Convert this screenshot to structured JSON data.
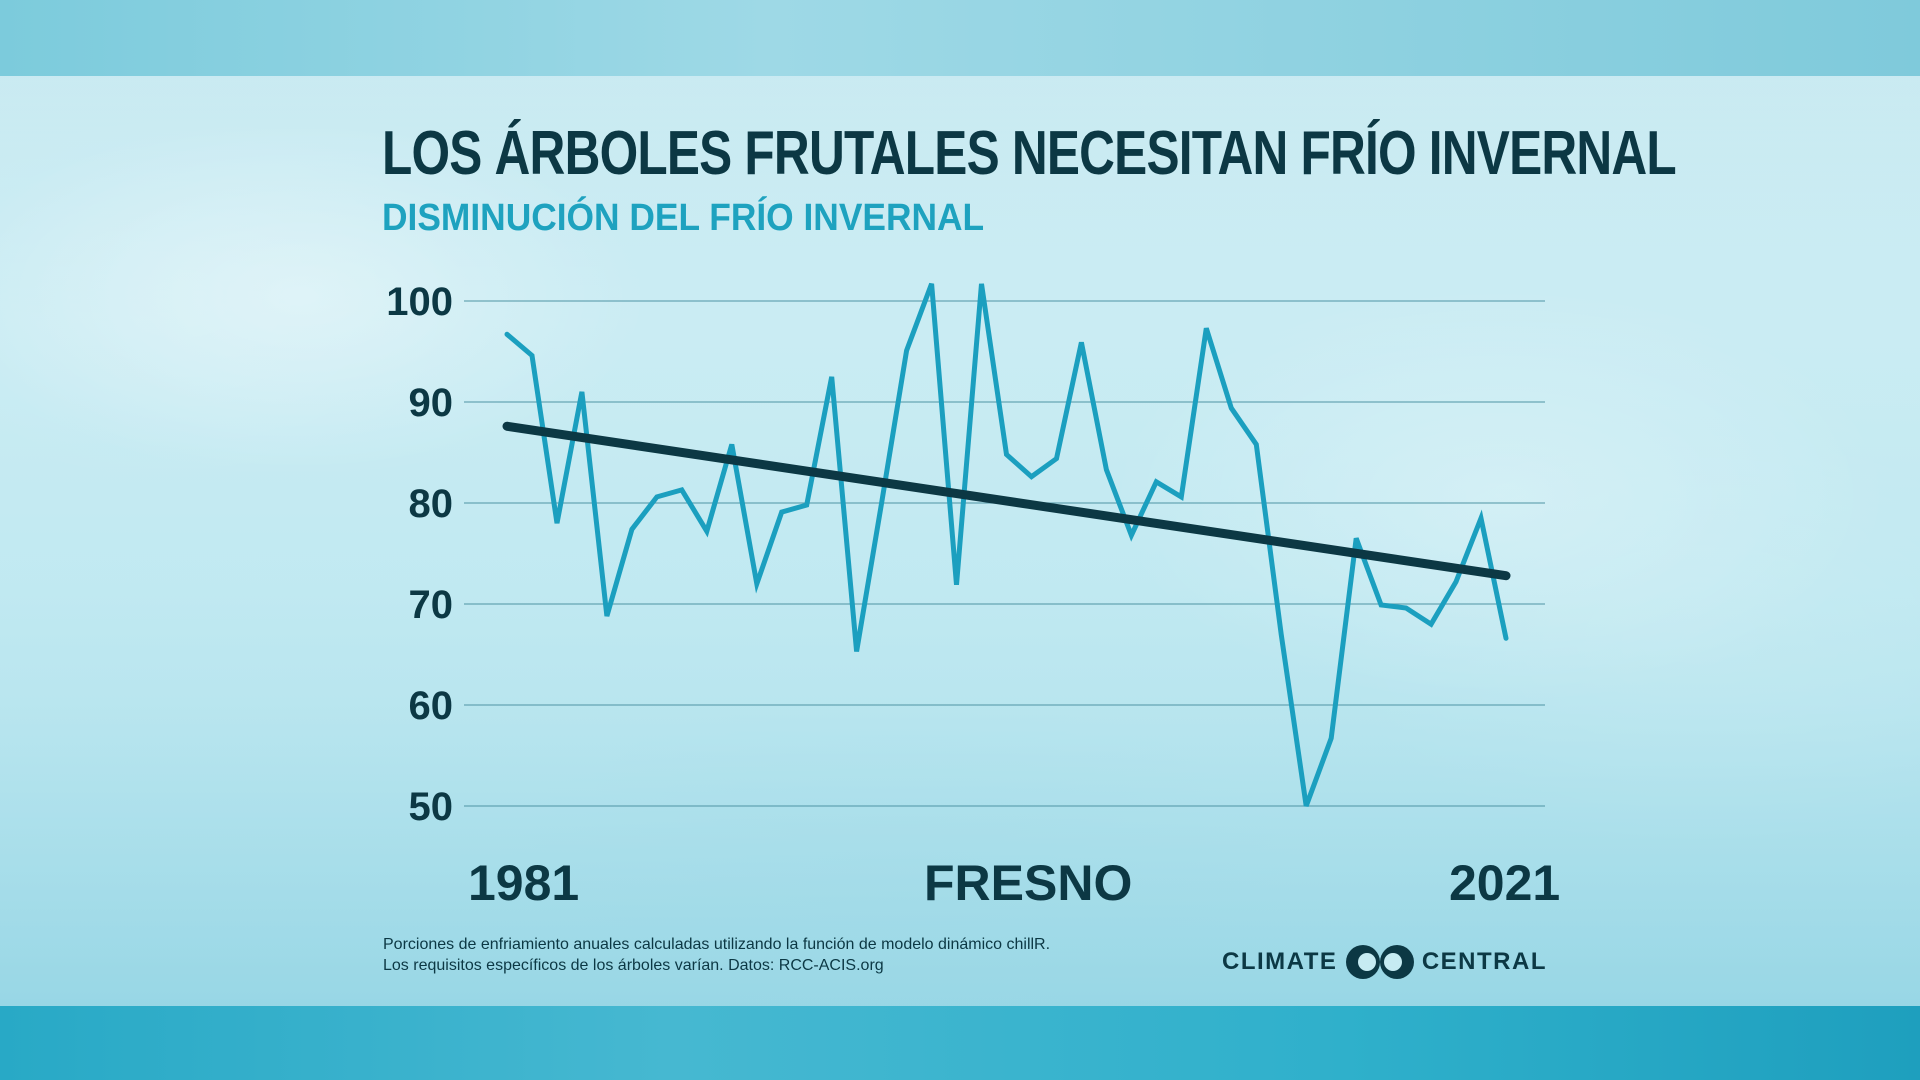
{
  "title": "LOS ÁRBOLES FRUTALES NECESITAN FRÍO INVERNAL",
  "subtitle": "DISMINUCIÓN DEL FRÍO INVERNAL",
  "footnote": {
    "line1": "Porciones de enfriamiento anuales calculadas utilizando la función de modelo dinámico chillR.",
    "line2": "Los requisitos específicos de los árboles varían. Datos: RCC-ACIS.org"
  },
  "logo": {
    "left_word": "CLIMATE",
    "right_word": "CENTRAL"
  },
  "chart_data": {
    "type": "line",
    "xlabel_left": "1981",
    "xlabel_center": "FRESNO",
    "xlabel_right": "2021",
    "ylim": [
      50,
      100
    ],
    "yticks": [
      "100",
      "90",
      "80",
      "70",
      "60",
      "50"
    ],
    "grid": true,
    "x": [
      1981,
      1982,
      1983,
      1984,
      1985,
      1986,
      1987,
      1988,
      1989,
      1990,
      1991,
      1992,
      1993,
      1994,
      1995,
      1996,
      1997,
      1998,
      1999,
      2000,
      2001,
      2002,
      2003,
      2004,
      2005,
      2006,
      2007,
      2008,
      2009,
      2010,
      2011,
      2012,
      2013,
      2014,
      2015,
      2016,
      2017,
      2018,
      2019,
      2020,
      2021
    ],
    "series": [
      {
        "values": [
          96.7,
          94.6,
          78.0,
          91.0,
          68.8,
          77.4,
          80.6,
          81.3,
          77.2,
          85.8,
          72.0,
          79.1,
          79.8,
          92.5,
          65.3,
          80.0,
          95.1,
          101.7,
          71.9,
          101.7,
          84.8,
          82.6,
          84.4,
          95.9,
          83.3,
          76.8,
          82.1,
          80.6,
          97.3,
          89.4,
          85.8,
          67.0,
          50.0,
          56.7,
          76.5,
          69.9,
          69.6,
          68.0,
          72.2,
          78.5,
          66.6
        ],
        "color": "#1b9fbf"
      },
      {
        "values": [
          87.6,
          72.8
        ],
        "x": [
          1981,
          2021
        ],
        "color": "#0c3844"
      }
    ],
    "colors": {
      "title": "#0c3844",
      "subtitle": "#1ea2bf",
      "grid": "#4f95a5"
    }
  }
}
